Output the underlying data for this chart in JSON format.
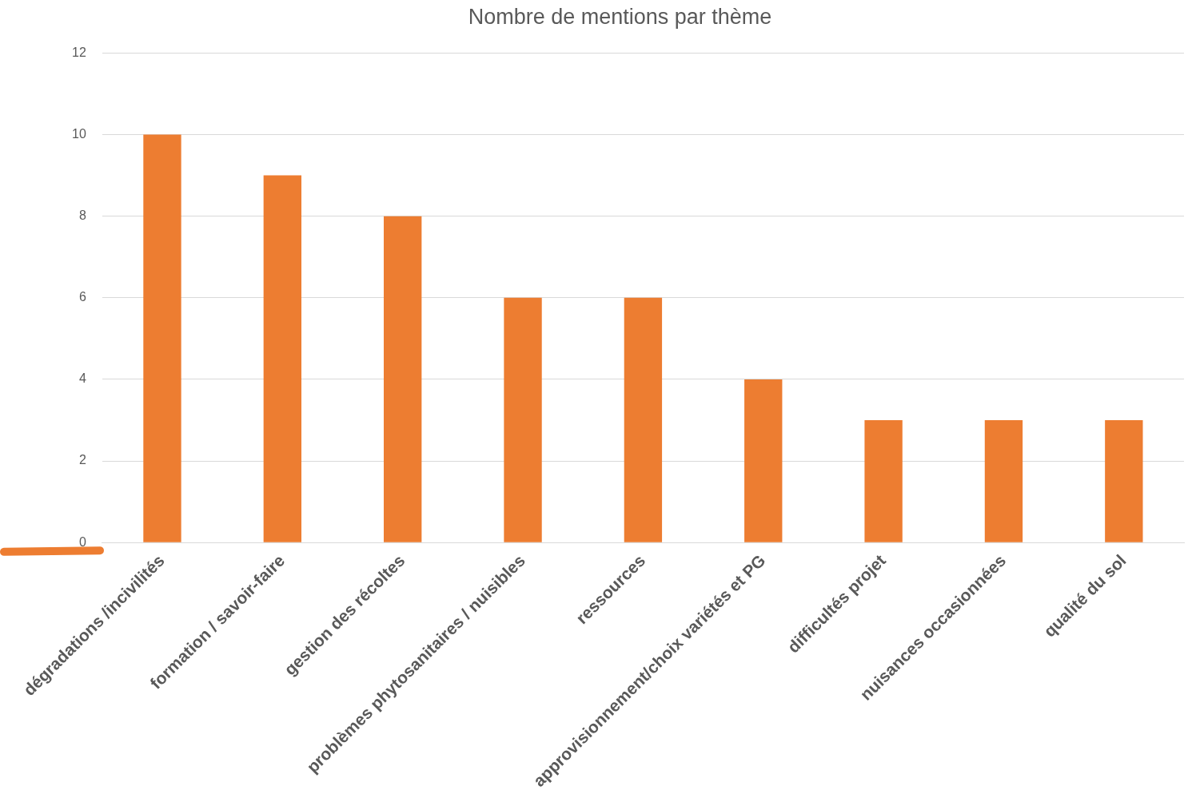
{
  "chart_data": {
    "type": "bar",
    "title": "Nombre de mentions par thème",
    "categories": [
      "dégradations /incivilités",
      "formation / savoir-faire",
      "gestion des récoltes",
      "problèmes phytosanitaires / nuisibles",
      "ressources",
      "approvisionnement/choix variétés et PG",
      "difficultés projet",
      "nuisances occasionnées",
      "qualité du sol"
    ],
    "values": [
      10,
      9,
      8,
      6,
      6,
      4,
      3,
      3,
      3
    ],
    "color": "#ed7d31",
    "ylim": [
      0,
      12
    ],
    "yticks": [
      0,
      2,
      4,
      6,
      8,
      10,
      12
    ],
    "grid": "y"
  }
}
